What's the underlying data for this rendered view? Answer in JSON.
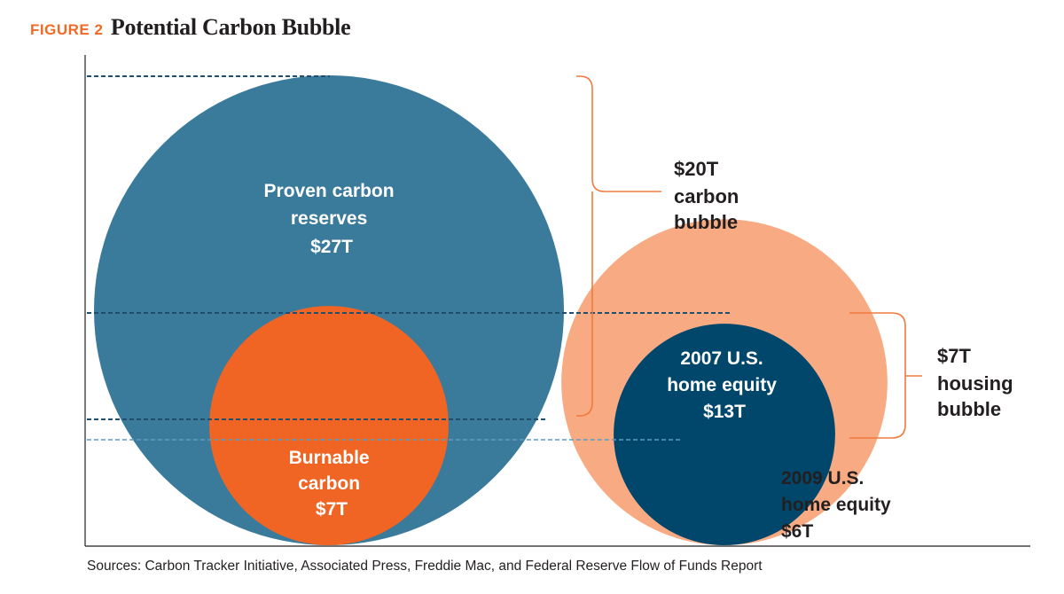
{
  "title": {
    "figure_label": "FIGURE 2",
    "text": "Potential Carbon Bubble"
  },
  "colors": {
    "accent_orange": "#f06a25",
    "carbon_reserves": "#3a7b9c",
    "burnable_carbon": "#f06424",
    "home_equity_2007": "#f8ab83",
    "home_equity_2009": "#00476b",
    "bracket": "#f07b3d",
    "dashed_dark": "#1f4e6e",
    "dashed_light": "#5f9bbd",
    "axis": "#231f20"
  },
  "chart_data": {
    "type": "bubble",
    "unit": "trillion USD",
    "bubbles": [
      {
        "id": "proven-carbon-reserves",
        "label_lines": [
          "Proven carbon",
          "reserves",
          "$27T"
        ],
        "value": 27,
        "group": "carbon"
      },
      {
        "id": "burnable-carbon",
        "label_lines": [
          "Burnable",
          "carbon",
          "$7T"
        ],
        "value": 7,
        "group": "carbon"
      },
      {
        "id": "home-equity-2007",
        "label_lines": [
          "2007 U.S.",
          "home equity",
          "$13T"
        ],
        "value": 13,
        "group": "housing"
      },
      {
        "id": "home-equity-2009",
        "label_lines": [
          "2009 U.S.",
          "home equity",
          "$6T"
        ],
        "value": 6,
        "group": "housing"
      }
    ],
    "brackets": [
      {
        "id": "carbon-bubble",
        "label_lines": [
          "$20T",
          "carbon",
          "bubble"
        ],
        "value": 20
      },
      {
        "id": "housing-bubble",
        "label_lines": [
          "$7T",
          "housing",
          "bubble"
        ],
        "value": 7
      }
    ]
  },
  "sources": "Sources: Carbon Tracker Initiative, Associated Press, Freddie Mac, and Federal Reserve Flow of Funds Report"
}
